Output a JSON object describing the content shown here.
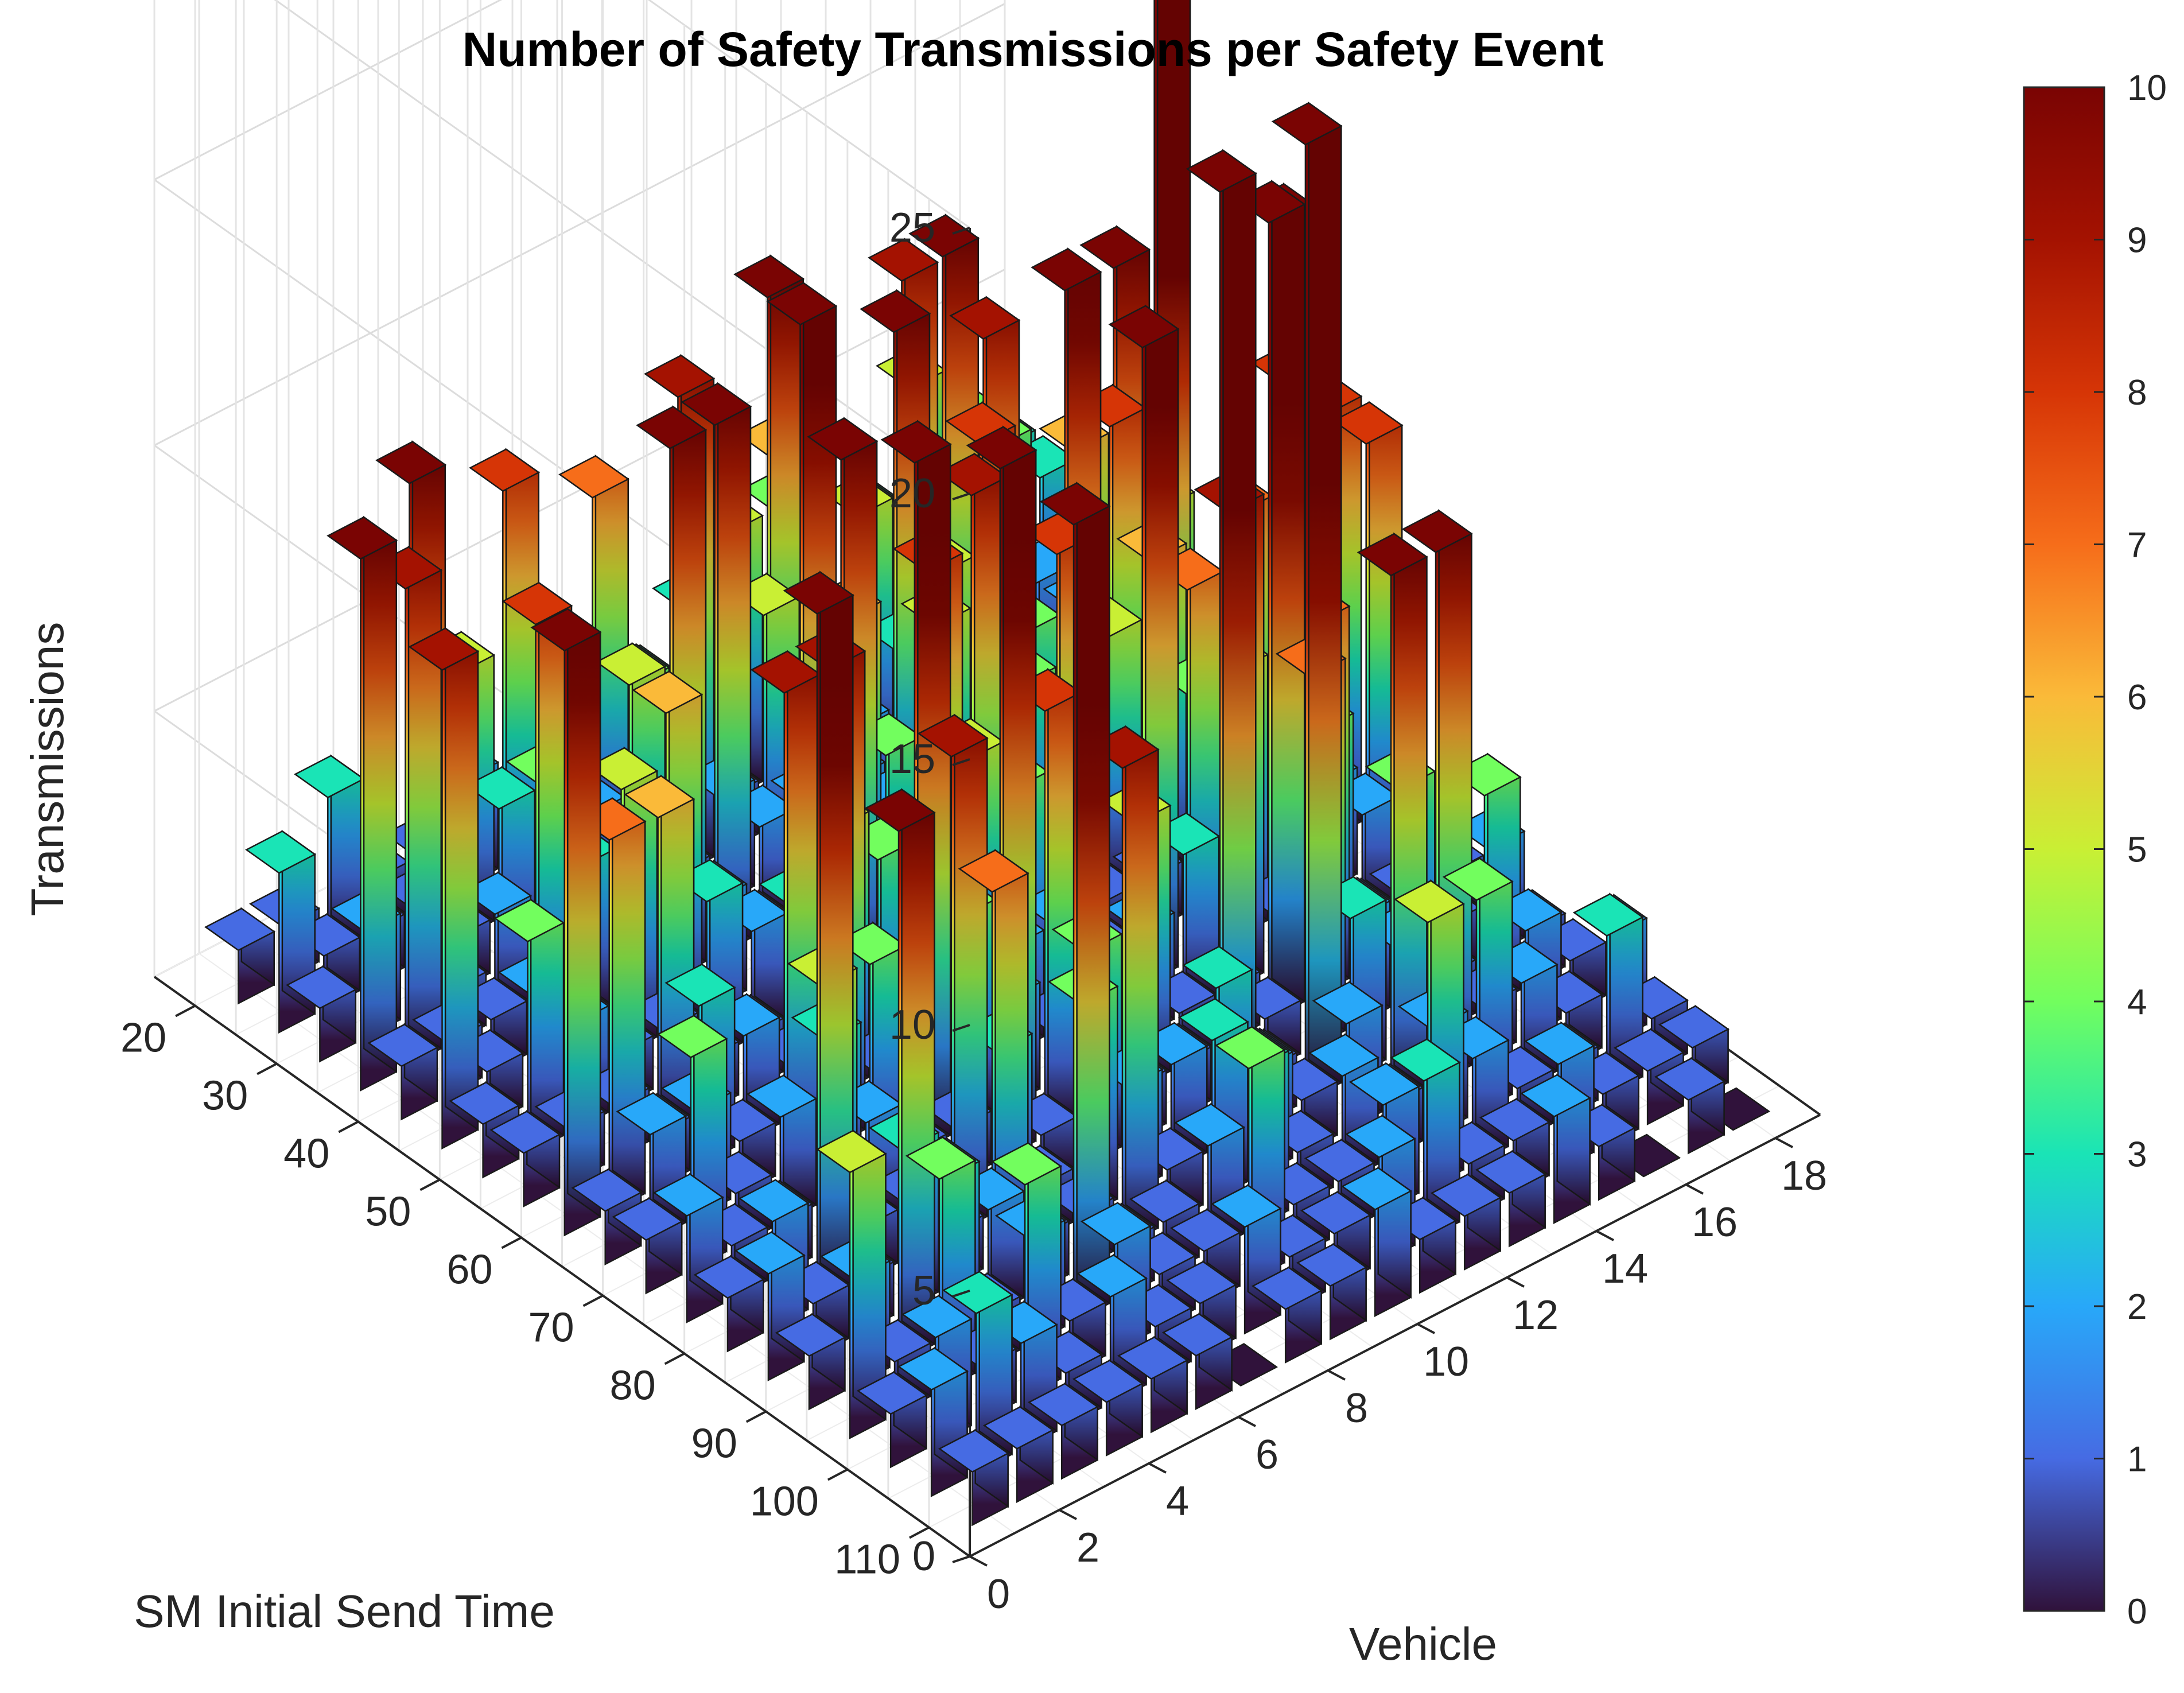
{
  "chart_data": {
    "type": "bar3",
    "title": "Number of Safety Transmissions per Safety Event",
    "xlabel": "Vehicle",
    "ylabel": "SM Initial Send Time",
    "zlabel": "Transmissions",
    "x_ticks": [
      "0",
      "2",
      "4",
      "6",
      "8",
      "10",
      "12",
      "14",
      "16",
      "18"
    ],
    "y_ticks": [
      "20",
      "30",
      "40",
      "50",
      "60",
      "70",
      "80",
      "90",
      "100",
      "110"
    ],
    "z_ticks": [
      "0",
      "5",
      "10",
      "15",
      "20",
      "25"
    ],
    "xlim": [
      0,
      19
    ],
    "ylim": [
      15,
      115
    ],
    "zlim": [
      0,
      25
    ],
    "colorbar": {
      "min": 0,
      "max": 10,
      "ticks": [
        "0",
        "1",
        "2",
        "3",
        "4",
        "5",
        "6",
        "7",
        "8",
        "9",
        "10"
      ],
      "colormap": "turbo"
    },
    "color_by": "height, saturating at 10",
    "vehicles": [
      1,
      2,
      3,
      4,
      5,
      6,
      7,
      8,
      9,
      10,
      11,
      12,
      13,
      14,
      15,
      16,
      17,
      18
    ],
    "send_times": [
      20,
      25,
      30,
      35,
      40,
      45,
      50,
      55,
      60,
      65,
      70,
      75,
      80,
      85,
      90,
      95,
      100,
      105,
      110
    ],
    "z_values": [
      [
        1,
        1,
        3,
        1,
        1,
        2,
        1,
        1,
        2,
        1,
        3,
        1,
        4,
        1,
        3,
        5,
        4,
        3
      ],
      [
        3,
        1,
        1,
        1,
        5,
        8,
        1,
        7,
        3,
        1,
        5,
        6,
        1,
        4,
        3,
        2,
        4,
        3
      ],
      [
        1,
        2,
        10,
        1,
        3,
        1,
        2,
        4,
        9,
        1,
        10,
        3,
        5,
        9,
        4,
        1,
        2,
        2
      ],
      [
        10,
        9,
        1,
        2,
        4,
        1,
        5,
        1,
        2,
        5,
        1,
        2,
        3,
        10,
        3,
        1,
        2,
        1
      ],
      [
        1,
        1,
        1,
        8,
        3,
        2,
        10,
        10,
        2,
        2,
        2,
        10,
        5,
        9,
        2,
        6,
        1,
        1
      ],
      [
        9,
        1,
        2,
        1,
        5,
        6,
        2,
        1,
        12,
        6,
        2,
        5,
        8,
        4,
        2,
        10,
        5,
        2
      ],
      [
        1,
        4,
        2,
        1,
        1,
        3,
        2,
        1,
        10,
        4,
        1,
        2,
        4,
        11,
        8,
        16,
        1,
        1
      ],
      [
        1,
        1,
        1,
        6,
        1,
        1,
        3,
        1,
        1,
        8,
        9,
        2,
        1,
        5,
        6,
        1,
        3,
        8
      ],
      [
        11,
        7,
        1,
        3,
        2,
        1,
        5,
        4,
        2,
        5,
        4,
        8,
        1,
        1,
        4,
        7,
        12,
        8
      ],
      [
        1,
        2,
        2,
        1,
        9,
        9,
        1,
        1,
        1,
        2,
        2,
        1,
        12,
        7,
        5,
        1,
        2,
        8
      ],
      [
        1,
        4,
        1,
        2,
        3,
        4,
        13,
        4,
        2,
        1,
        1,
        2,
        3,
        9,
        1,
        4,
        2,
        1
      ],
      [
        2,
        1,
        1,
        5,
        2,
        1,
        1,
        13,
        8,
        1,
        5,
        1,
        1,
        15,
        7,
        1,
        1,
        1
      ],
      [
        1,
        2,
        13,
        1,
        1,
        9,
        3,
        1,
        4,
        1,
        1,
        17,
        1,
        7,
        2,
        4,
        1,
        2
      ],
      [
        2,
        1,
        1,
        3,
        1,
        7,
        1,
        4,
        2,
        2,
        3,
        1,
        18,
        3,
        2,
        1,
        4,
        1
      ],
      [
        1,
        2,
        10,
        3,
        2,
        1,
        1,
        9,
        1,
        3,
        2,
        1,
        2,
        10,
        10,
        1,
        2,
        1
      ],
      [
        5,
        1,
        4,
        1,
        2,
        15,
        1,
        1,
        2,
        3,
        1,
        2,
        1,
        2,
        4,
        2,
        1,
        2
      ],
      [
        1,
        2,
        1,
        4,
        1,
        2,
        1,
        1,
        4,
        1,
        1,
        2,
        5,
        2,
        1,
        1,
        3,
        1
      ],
      [
        2,
        3,
        2,
        1,
        2,
        1,
        1,
        2,
        1,
        1,
        2,
        3,
        1,
        1,
        2,
        1,
        1,
        1
      ],
      [
        1,
        1,
        1,
        1,
        1,
        1,
        0,
        1,
        1,
        2,
        1,
        1,
        1,
        2,
        1,
        0,
        1,
        0
      ]
    ]
  }
}
